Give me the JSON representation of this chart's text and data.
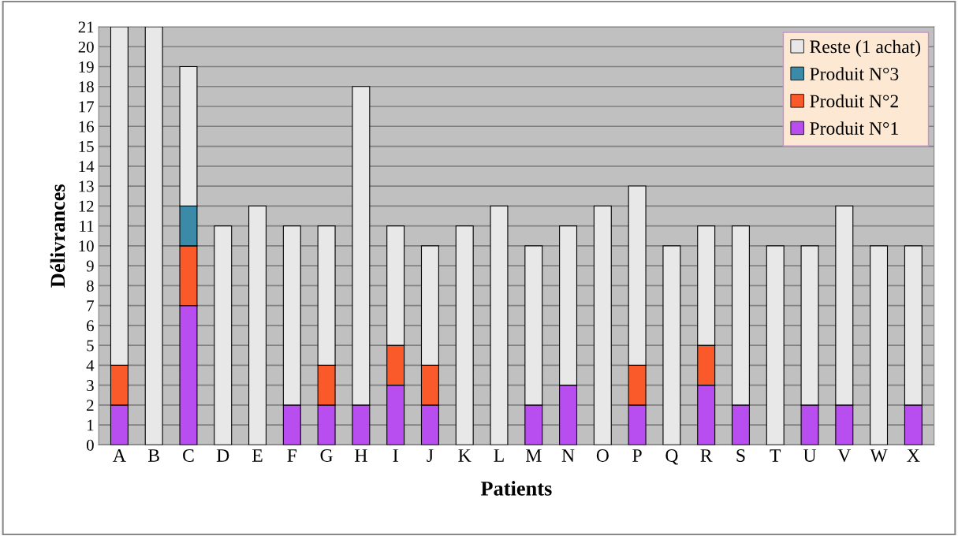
{
  "chart_data": {
    "type": "bar",
    "stacked": true,
    "xlabel": "Patients",
    "ylabel": "Délivrances",
    "categories": [
      "A",
      "B",
      "C",
      "D",
      "E",
      "F",
      "G",
      "H",
      "I",
      "J",
      "K",
      "L",
      "M",
      "N",
      "O",
      "P",
      "Q",
      "R",
      "S",
      "T",
      "U",
      "V",
      "W",
      "X"
    ],
    "series": [
      {
        "name": "Produit N°1",
        "color": "#b94ef0",
        "values": [
          2,
          0,
          7,
          0,
          0,
          2,
          2,
          2,
          3,
          2,
          0,
          0,
          2,
          3,
          0,
          2,
          0,
          3,
          2,
          0,
          2,
          2,
          0,
          2
        ]
      },
      {
        "name": "Produit N°2",
        "color": "#fa5a2a",
        "values": [
          2,
          0,
          3,
          0,
          0,
          0,
          2,
          0,
          2,
          2,
          0,
          0,
          0,
          0,
          0,
          2,
          0,
          2,
          0,
          0,
          0,
          0,
          0,
          0
        ]
      },
      {
        "name": "Produit N°3",
        "color": "#3a8aa8",
        "values": [
          0,
          0,
          2,
          0,
          0,
          0,
          0,
          0,
          0,
          0,
          0,
          0,
          0,
          0,
          0,
          0,
          0,
          0,
          0,
          0,
          0,
          0,
          0,
          0
        ]
      },
      {
        "name": "Reste (1 achat)",
        "color": "#e8e8e8",
        "values": [
          17,
          21,
          7,
          11,
          12,
          9,
          7,
          16,
          6,
          6,
          11,
          12,
          8,
          8,
          12,
          9,
          10,
          6,
          9,
          10,
          8,
          10,
          10,
          8
        ]
      }
    ],
    "ylim": [
      0,
      21
    ],
    "yticks": [
      0,
      1,
      2,
      3,
      4,
      5,
      6,
      7,
      8,
      9,
      10,
      11,
      12,
      13,
      14,
      15,
      16,
      17,
      18,
      19,
      20,
      21
    ],
    "grid": "y",
    "legend": "top right"
  }
}
